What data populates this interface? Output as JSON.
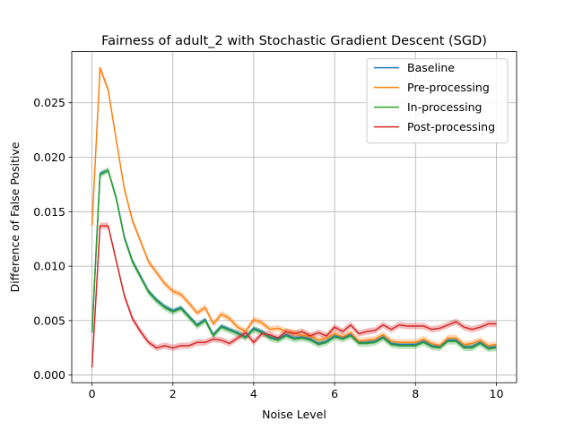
{
  "chart_data": {
    "type": "line",
    "title": "Fairness of adult_2 with Stochastic Gradient Descent (SGD)",
    "xlabel": "Noise Level",
    "ylabel": "Difference of False Positive",
    "xlim": [
      -0.5,
      10.5
    ],
    "ylim": [
      -0.0007,
      0.0297
    ],
    "xticks": [
      0,
      2,
      4,
      6,
      8,
      10
    ],
    "xtick_labels": [
      "0",
      "2",
      "4",
      "6",
      "8",
      "10"
    ],
    "yticks": [
      0.0,
      0.005,
      0.01,
      0.015,
      0.02,
      0.025
    ],
    "ytick_labels": [
      "0.000",
      "0.005",
      "0.010",
      "0.015",
      "0.020",
      "0.025"
    ],
    "grid": true,
    "legend_position": "top-right",
    "x": [
      0,
      0.2,
      0.4,
      0.6,
      0.8,
      1.0,
      1.2,
      1.4,
      1.6,
      1.8,
      2.0,
      2.2,
      2.4,
      2.6,
      2.8,
      3.0,
      3.2,
      3.4,
      3.6,
      3.8,
      4.0,
      4.2,
      4.4,
      4.6,
      4.8,
      5.0,
      5.2,
      5.4,
      5.6,
      5.8,
      6.0,
      6.2,
      6.4,
      6.6,
      6.8,
      7.0,
      7.2,
      7.4,
      7.6,
      7.8,
      8.0,
      8.2,
      8.4,
      8.6,
      8.8,
      9.0,
      9.2,
      9.4,
      9.6,
      9.8,
      10.0
    ],
    "series": [
      {
        "name": "Baseline",
        "color": "#1f77b4",
        "band": 0.0002,
        "values": [
          0.0039,
          0.0185,
          0.0188,
          0.0163,
          0.0127,
          0.0105,
          0.0091,
          0.0077,
          0.0069,
          0.0063,
          0.0059,
          0.0062,
          0.0054,
          0.0046,
          0.0051,
          0.0037,
          0.0045,
          0.0042,
          0.0039,
          0.0035,
          0.0043,
          0.004,
          0.0035,
          0.0033,
          0.0037,
          0.0034,
          0.0035,
          0.0033,
          0.0029,
          0.0031,
          0.0036,
          0.0034,
          0.0037,
          0.003,
          0.003,
          0.0031,
          0.0035,
          0.0029,
          0.0028,
          0.0028,
          0.0028,
          0.0031,
          0.0027,
          0.0026,
          0.0032,
          0.0032,
          0.0026,
          0.0026,
          0.003,
          0.0025,
          0.0026
        ]
      },
      {
        "name": "Pre-processing",
        "color": "#ff7f0e",
        "band": 0.0003,
        "values": [
          0.0137,
          0.0282,
          0.0262,
          0.0216,
          0.0171,
          0.0142,
          0.0123,
          0.0104,
          0.0094,
          0.0084,
          0.0077,
          0.0074,
          0.0066,
          0.0057,
          0.0062,
          0.0047,
          0.0056,
          0.0052,
          0.0044,
          0.004,
          0.0051,
          0.0048,
          0.0042,
          0.0043,
          0.004,
          0.0039,
          0.0036,
          0.0036,
          0.0032,
          0.0034,
          0.0038,
          0.0035,
          0.0039,
          0.0031,
          0.0032,
          0.0033,
          0.0037,
          0.0031,
          0.003,
          0.003,
          0.003,
          0.0033,
          0.0029,
          0.0027,
          0.0034,
          0.0034,
          0.0028,
          0.0029,
          0.0032,
          0.0027,
          0.0028
        ]
      },
      {
        "name": "In-processing",
        "color": "#2ca02c",
        "band": 0.0003,
        "values": [
          0.0039,
          0.0184,
          0.0188,
          0.0162,
          0.0126,
          0.0104,
          0.009,
          0.0076,
          0.0068,
          0.0062,
          0.0058,
          0.0061,
          0.0053,
          0.0045,
          0.005,
          0.0036,
          0.0044,
          0.0041,
          0.0038,
          0.0034,
          0.0042,
          0.0039,
          0.0034,
          0.0032,
          0.0036,
          0.0033,
          0.0034,
          0.0032,
          0.0028,
          0.003,
          0.0035,
          0.0033,
          0.0036,
          0.0029,
          0.0029,
          0.003,
          0.0034,
          0.0028,
          0.0027,
          0.0027,
          0.0027,
          0.003,
          0.0026,
          0.0025,
          0.0031,
          0.0031,
          0.0025,
          0.0025,
          0.0029,
          0.0024,
          0.0025
        ]
      },
      {
        "name": "Post-processing",
        "color": "#d62728",
        "band": 0.0003,
        "values": [
          0.0007,
          0.0137,
          0.0137,
          0.0105,
          0.0073,
          0.0052,
          0.004,
          0.003,
          0.0025,
          0.0027,
          0.0025,
          0.0027,
          0.0027,
          0.003,
          0.003,
          0.0033,
          0.0032,
          0.0029,
          0.0034,
          0.0039,
          0.003,
          0.0038,
          0.0037,
          0.0034,
          0.004,
          0.0038,
          0.004,
          0.0036,
          0.0039,
          0.0036,
          0.0044,
          0.004,
          0.0046,
          0.0038,
          0.004,
          0.0041,
          0.0046,
          0.0042,
          0.0046,
          0.0045,
          0.0045,
          0.0045,
          0.0042,
          0.0043,
          0.0046,
          0.0049,
          0.0044,
          0.0042,
          0.0044,
          0.0047,
          0.0047
        ]
      }
    ]
  }
}
